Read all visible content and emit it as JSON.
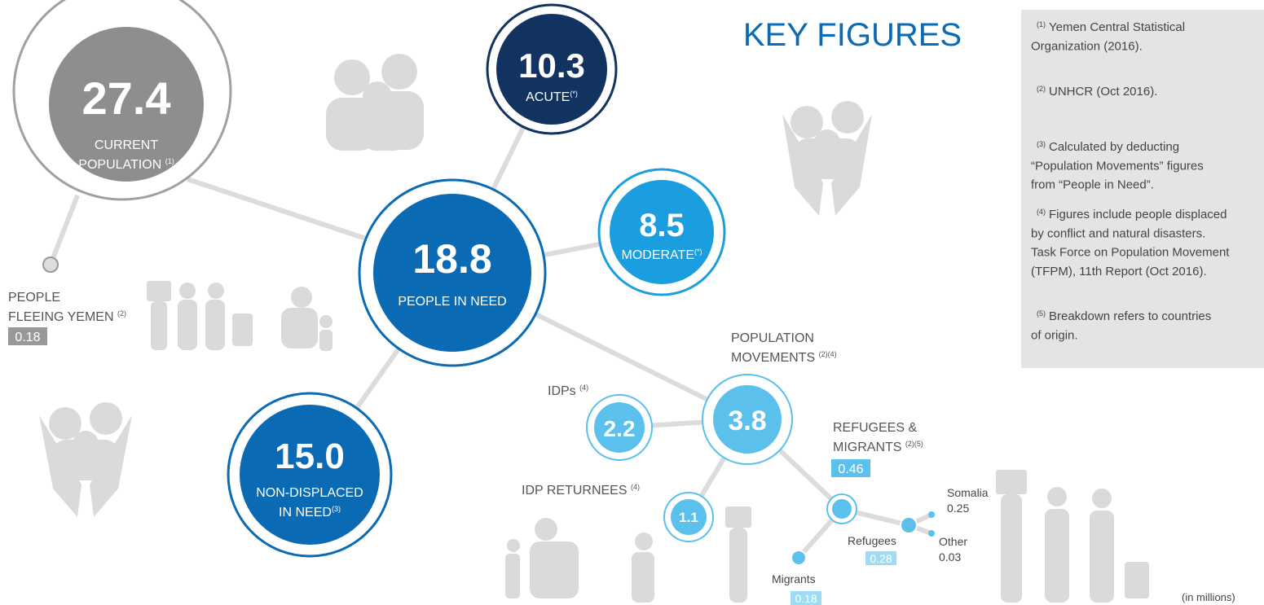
{
  "title": "KEY FIGURES",
  "population": {
    "value": "27.4",
    "label": [
      "CURRENT",
      "POPULATION"
    ],
    "ref": "(1)"
  },
  "fleeing": {
    "label": [
      "PEOPLE",
      "FLEEING YEMEN"
    ],
    "ref": "(2)",
    "value": "0.18"
  },
  "people_in_need": {
    "value": "18.8",
    "label": "PEOPLE IN NEED"
  },
  "acute": {
    "value": "10.3",
    "label": "ACUTE",
    "ref": "(*)"
  },
  "moderate": {
    "value": "8.5",
    "label": "MODERATE",
    "ref": "(*)"
  },
  "non_displaced": {
    "value": "15.0",
    "label": [
      "NON-DISPLACED",
      "IN NEED"
    ],
    "ref": "(3)"
  },
  "movements": {
    "value": "3.8",
    "label": [
      "POPULATION",
      "MOVEMENTS"
    ],
    "ref": "(2)(4)"
  },
  "idps": {
    "value": "2.2",
    "label": "IDPs",
    "ref": "(4)"
  },
  "returnees": {
    "value": "1.1",
    "label": "IDP RETURNEES",
    "ref": "(4)"
  },
  "refugees_migrants": {
    "label": [
      "REFUGEES &",
      "MIGRANTS"
    ],
    "ref": "(2)(5)",
    "value": "0.46"
  },
  "refugees": {
    "label": "Refugees",
    "value": "0.28"
  },
  "migrants": {
    "label": "Migrants",
    "value": "0.18"
  },
  "somalia": {
    "label": "Somalia",
    "value": "0.25"
  },
  "other": {
    "label": "Other",
    "value": "0.03"
  },
  "notes": [
    {
      "ref": "(1)",
      "text": [
        "Yemen Central Statistical",
        "Organization (2016)."
      ]
    },
    {
      "ref": "(2)",
      "text": [
        "UNHCR (Oct 2016)."
      ]
    },
    {
      "ref": "(3)",
      "text": [
        "Calculated by deducting",
        "“Population Movements” figures",
        "from “People in Need”."
      ]
    },
    {
      "ref": "(4)",
      "text": [
        "Figures include people displaced",
        "by conflict and natural disasters.",
        "Task Force on Population Movement",
        "(TFPM), 11th Report (Oct 2016)."
      ]
    },
    {
      "ref": "(5)",
      "text": [
        "Breakdown refers to countries",
        "of origin."
      ]
    }
  ],
  "unit": "(in millions)"
}
